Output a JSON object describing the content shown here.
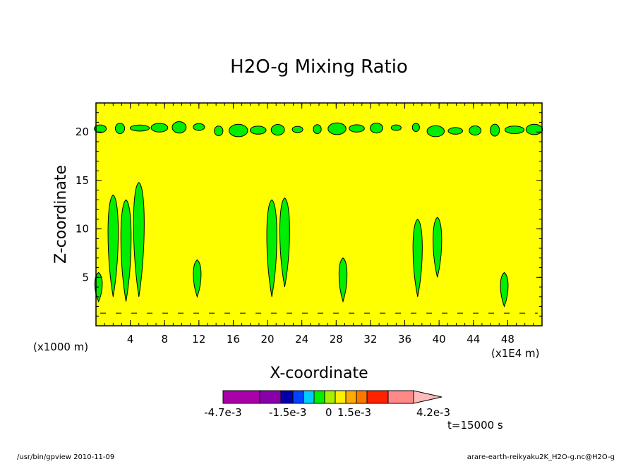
{
  "chart_data": {
    "type": "heatmap",
    "title": "H2O-g Mixing Ratio",
    "xlabel": "X-coordinate",
    "ylabel": "Z-coordinate",
    "x_unit_left": "(x1000 m)",
    "x_unit_right": "(x1E4 m)",
    "xlim": [
      0,
      52
    ],
    "ylim": [
      0,
      23
    ],
    "x_ticks": [
      "4",
      "8",
      "12",
      "16",
      "20",
      "24",
      "28",
      "32",
      "36",
      "40",
      "44",
      "48"
    ],
    "y_ticks": [
      "5",
      "10",
      "15",
      "20"
    ],
    "background_color": "#ffff00",
    "contour_fill_color": "#00ee00",
    "time_label": "t=15000 s",
    "colorbar": {
      "labels": [
        "-4.7e-3",
        "-1.5e-3",
        "0",
        "1.5e-3",
        "4.2e-3"
      ],
      "colors": [
        "#aa00aa",
        "#8800aa",
        "#0000aa",
        "#0044ff",
        "#00ccff",
        "#00ee00",
        "#aaee00",
        "#ffee00",
        "#ffaa00",
        "#ff7700",
        "#ff2200",
        "#ff8888",
        "#ffbbbb"
      ]
    },
    "plumes": [
      {
        "x": 0.3,
        "zmin": 2.5,
        "zmax": 5.5
      },
      {
        "x": 2.0,
        "zmin": 3.0,
        "zmax": 13.5
      },
      {
        "x": 3.5,
        "zmin": 2.5,
        "zmax": 13.0
      },
      {
        "x": 5.0,
        "zmin": 3.0,
        "zmax": 14.8
      },
      {
        "x": 11.8,
        "zmin": 3.0,
        "zmax": 6.8
      },
      {
        "x": 20.5,
        "zmin": 3.0,
        "zmax": 13.0
      },
      {
        "x": 22.0,
        "zmin": 4.0,
        "zmax": 13.2
      },
      {
        "x": 28.8,
        "zmin": 2.5,
        "zmax": 7.0
      },
      {
        "x": 37.5,
        "zmin": 3.0,
        "zmax": 11.0
      },
      {
        "x": 39.8,
        "zmin": 5.0,
        "zmax": 11.2
      },
      {
        "x": 47.6,
        "zmin": 2.0,
        "zmax": 5.5
      }
    ],
    "upper_band_z": 20.3
  },
  "footer": {
    "left": "/usr/bin/gpview   2010-11-09",
    "right": "arare-earth-reikyaku2K_H2O-g.nc@H2O-g"
  }
}
